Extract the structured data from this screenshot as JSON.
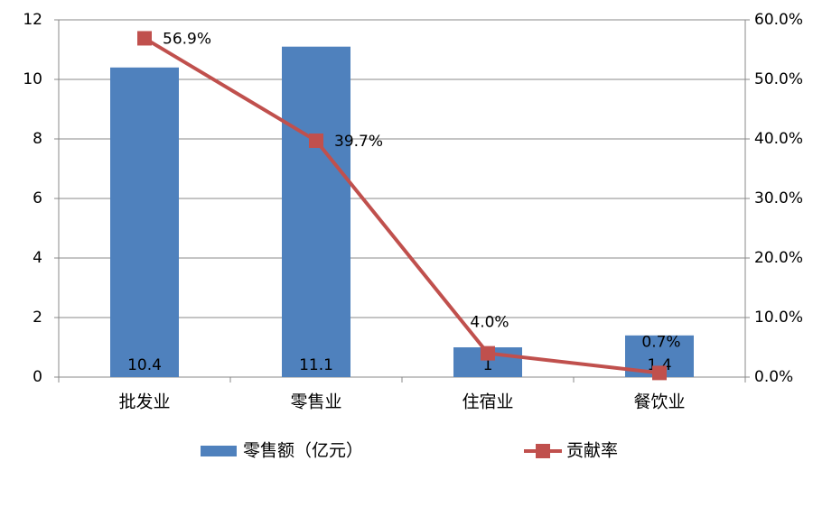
{
  "chart_data": {
    "type": "bar",
    "categories": [
      "批发业",
      "零售业",
      "住宿业",
      "餐饮业"
    ],
    "series": [
      {
        "name": "零售额（亿元）",
        "type": "bar",
        "color": "#4f81bd",
        "values": [
          10.4,
          11.1,
          1,
          1.4
        ]
      },
      {
        "name": "贡献率",
        "type": "line",
        "axis": "y2",
        "color": "#c0504d",
        "values": [
          56.9,
          39.7,
          4.0,
          0.7
        ],
        "value_labels": [
          "56.9%",
          "39.7%",
          "4.0%",
          "0.7%"
        ]
      }
    ],
    "ylim": [
      0,
      12
    ],
    "yticks": [
      0,
      2,
      4,
      6,
      8,
      10,
      12
    ],
    "y2lim": [
      0,
      60
    ],
    "y2ticks": [
      {
        "value": 0,
        "label": "0.0%"
      },
      {
        "value": 10,
        "label": "10.0%"
      },
      {
        "value": 20,
        "label": "20.0%"
      },
      {
        "value": 30,
        "label": "30.0%"
      },
      {
        "value": 40,
        "label": "40.0%"
      },
      {
        "value": 50,
        "label": "50.0%"
      },
      {
        "value": 60,
        "label": "60.0%"
      }
    ],
    "grid": true,
    "legend": "bottom"
  }
}
